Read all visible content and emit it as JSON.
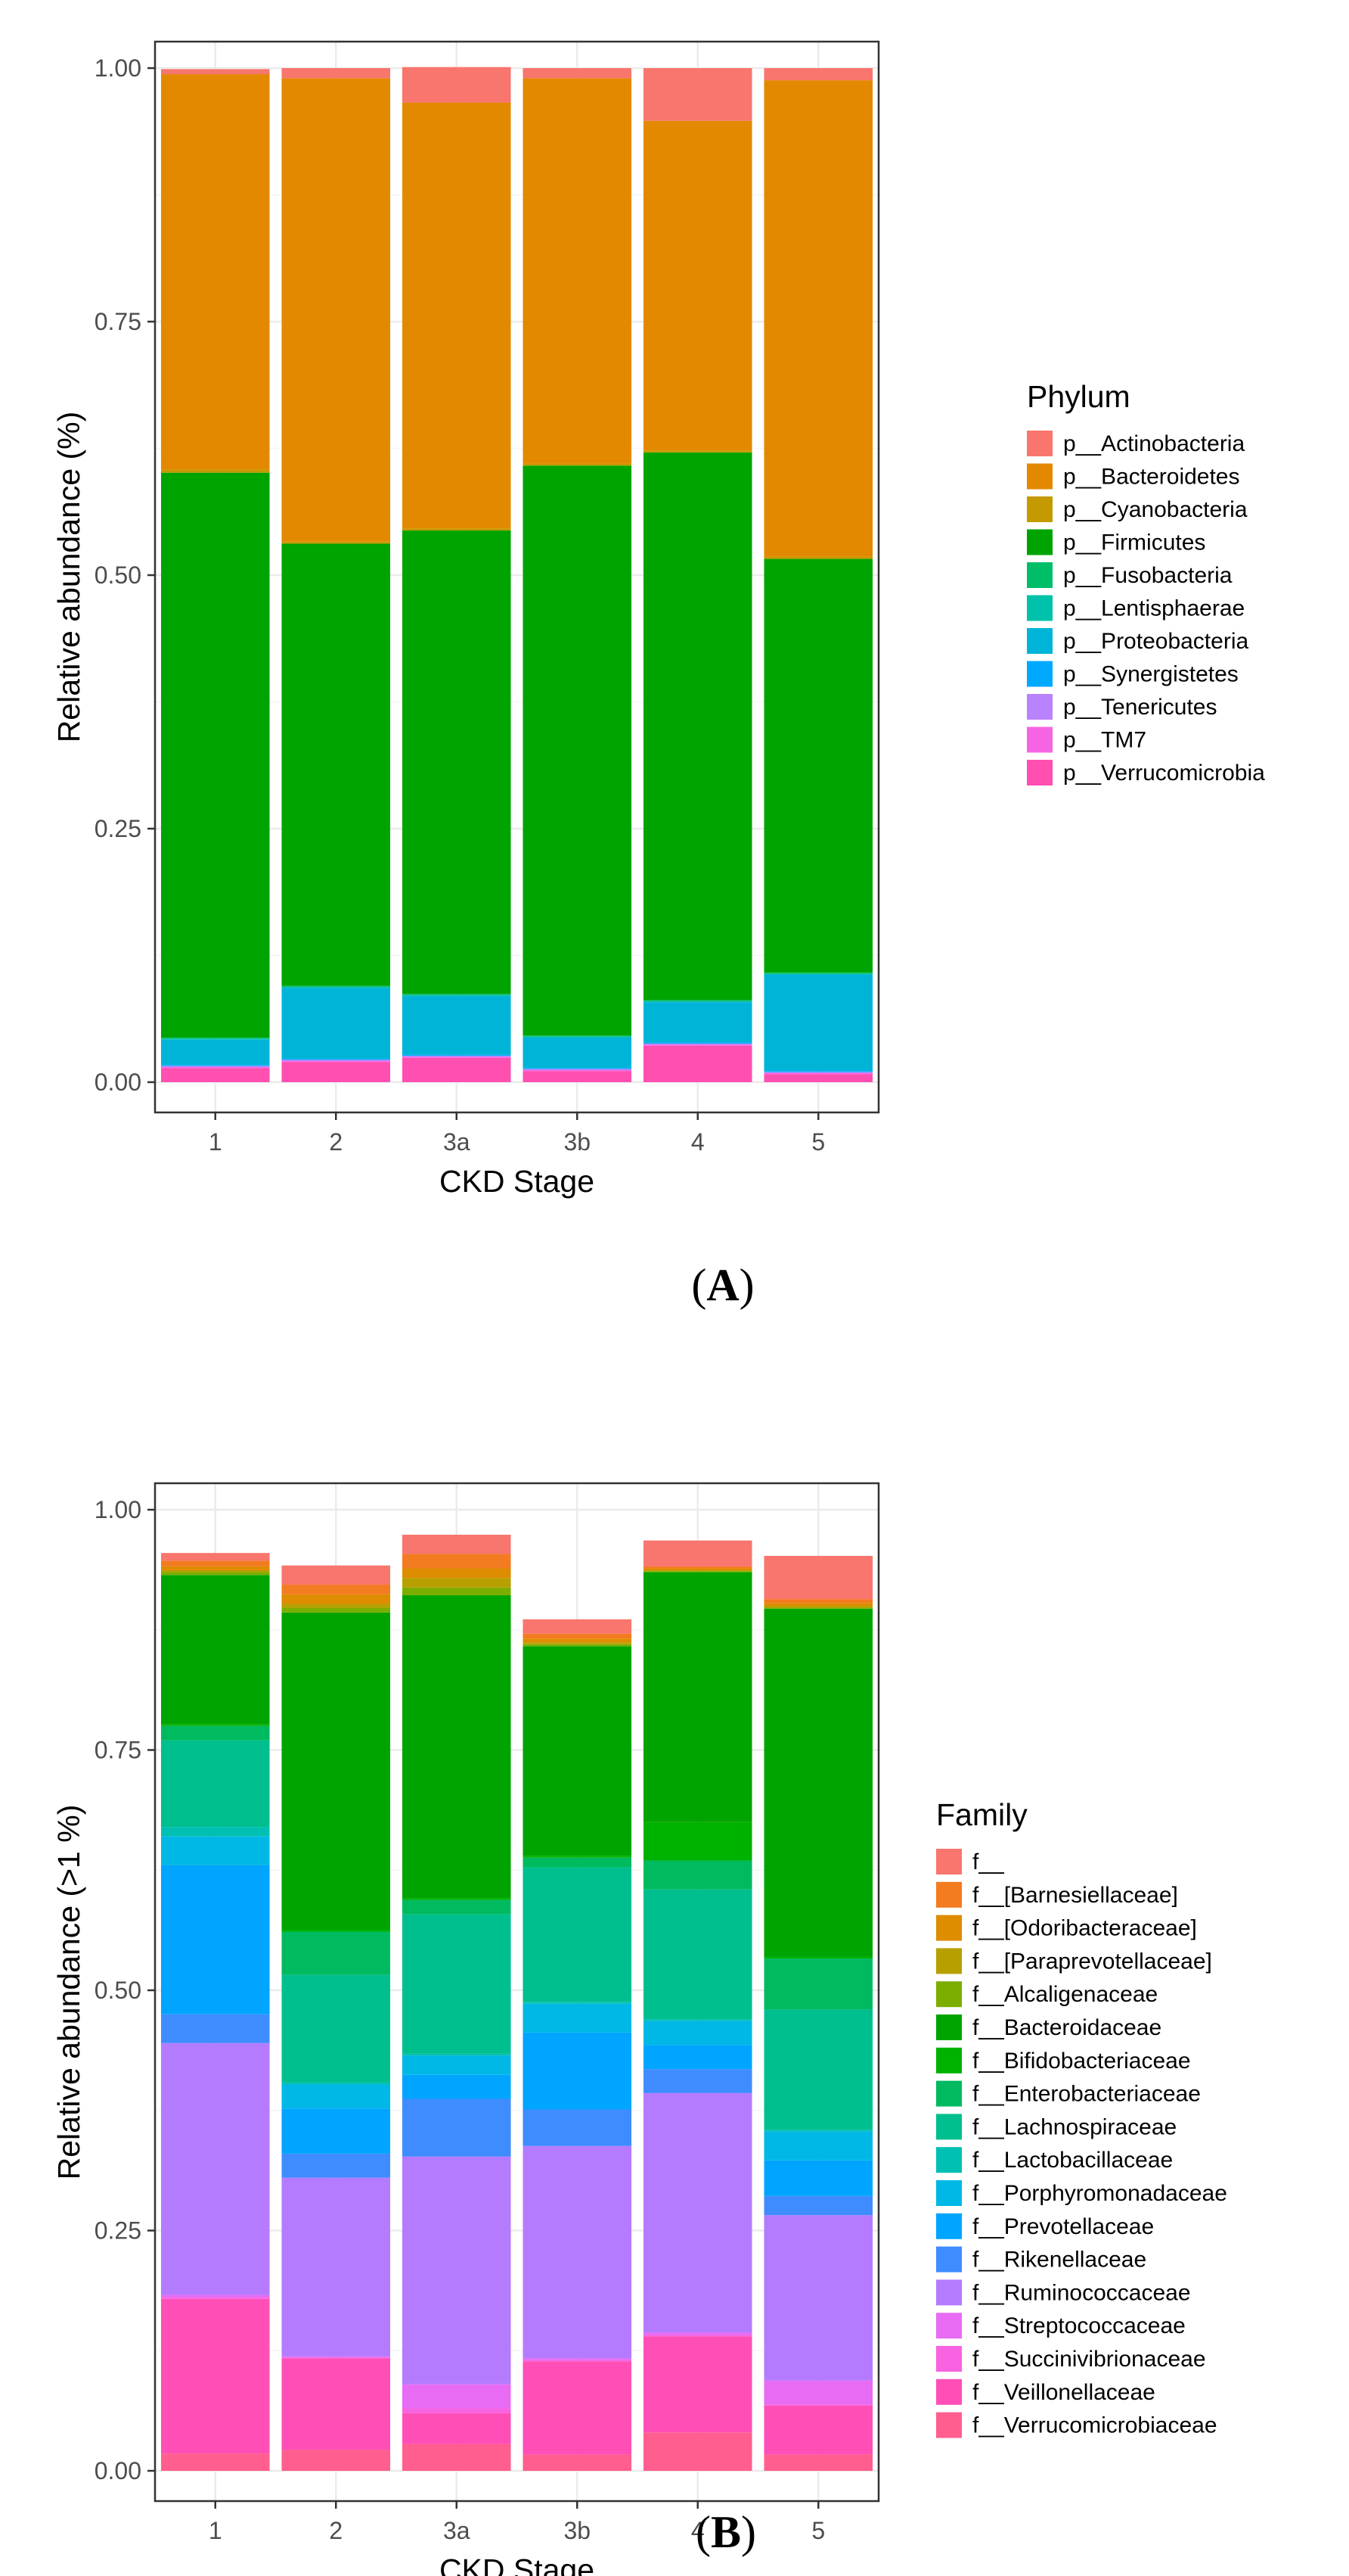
{
  "chart_data": [
    {
      "type": "bar",
      "stacked": true,
      "panel_label": "A",
      "xlabel": "CKD Stage",
      "ylabel": "Relative abundance (%)",
      "ylim": [
        0,
        1
      ],
      "yticks": [
        "0.00",
        "0.25",
        "0.50",
        "0.75",
        "1.00"
      ],
      "categories": [
        "1",
        "2",
        "3a",
        "3b",
        "4",
        "5"
      ],
      "grid": true,
      "legend_position": "right",
      "legend_title": "Phylum",
      "series": [
        {
          "name": "p__Actinobacteria",
          "color": "#F8766D",
          "values": [
            0.005,
            0.01,
            0.035,
            0.01,
            0.052,
            0.012
          ]
        },
        {
          "name": "p__Bacteroidetes",
          "color": "#E38900",
          "values": [
            0.39,
            0.457,
            0.42,
            0.38,
            0.325,
            0.47
          ]
        },
        {
          "name": "p__Cyanobacteria",
          "color": "#C49A00",
          "values": [
            0.003,
            0.002,
            0.002,
            0.002,
            0.002,
            0.002
          ]
        },
        {
          "name": "p__Firmicutes",
          "color": "#00A400",
          "values": [
            0.557,
            0.436,
            0.457,
            0.562,
            0.54,
            0.408
          ]
        },
        {
          "name": "p__Fusobacteria",
          "color": "#00BE67",
          "values": [
            0.001,
            0.001,
            0.001,
            0.001,
            0.001,
            0.001
          ]
        },
        {
          "name": "p__Lentisphaerae",
          "color": "#00C1A9",
          "values": [
            0.001,
            0.001,
            0.001,
            0.001,
            0.001,
            0.001
          ]
        },
        {
          "name": "p__Proteobacteria",
          "color": "#00B4D8",
          "values": [
            0.025,
            0.07,
            0.058,
            0.03,
            0.04,
            0.095
          ]
        },
        {
          "name": "p__Synergistetes",
          "color": "#00A9FF",
          "values": [
            0.001,
            0.001,
            0.001,
            0.001,
            0.001,
            0.001
          ]
        },
        {
          "name": "p__Tenericutes",
          "color": "#B983FF",
          "values": [
            0.001,
            0.001,
            0.001,
            0.001,
            0.001,
            0.001
          ]
        },
        {
          "name": "p__TM7",
          "color": "#F564E3",
          "values": [
            0.001,
            0.001,
            0.001,
            0.001,
            0.001,
            0.001
          ]
        },
        {
          "name": "p__Verrucomicrobia",
          "color": "#FF4FB0",
          "values": [
            0.014,
            0.02,
            0.024,
            0.011,
            0.036,
            0.008
          ]
        }
      ]
    },
    {
      "type": "bar",
      "stacked": true,
      "panel_label": "B",
      "xlabel": "CKD Stage",
      "ylabel": "Relative abundance (>1 %)",
      "ylim": [
        0,
        1
      ],
      "yticks": [
        "0.00",
        "0.25",
        "0.50",
        "0.75",
        "1.00"
      ],
      "categories": [
        "1",
        "2",
        "3a",
        "3b",
        "4",
        "5"
      ],
      "grid": true,
      "legend_position": "right",
      "legend_title": "Family",
      "series": [
        {
          "name": "f__",
          "color": "#F8766D",
          "values": [
            0.008,
            0.02,
            0.02,
            0.015,
            0.027,
            0.045
          ]
        },
        {
          "name": "f__[Barnesiellaceae]",
          "color": "#F37B20",
          "values": [
            0.006,
            0.01,
            0.015,
            0.005,
            0.002,
            0.004
          ]
        },
        {
          "name": "f__[Odoribacteraceae]",
          "color": "#DE8C00",
          "values": [
            0.004,
            0.01,
            0.01,
            0.004,
            0.002,
            0.003
          ]
        },
        {
          "name": "f__[Paraprevotellaceae]",
          "color": "#B79F00",
          "values": [
            0.002,
            0.004,
            0.01,
            0.002,
            0.001,
            0.002
          ]
        },
        {
          "name": "f__Alcaligenaceae",
          "color": "#7CAE00",
          "values": [
            0.003,
            0.005,
            0.008,
            0.002,
            0.001,
            0.001
          ]
        },
        {
          "name": "f__Bacteroidaceae",
          "color": "#00A400",
          "values": [
            0.155,
            0.33,
            0.315,
            0.218,
            0.26,
            0.362
          ]
        },
        {
          "name": "f__Bifidobacteriaceae",
          "color": "#00B200",
          "values": [
            0.002,
            0.002,
            0.002,
            0.002,
            0.04,
            0.002
          ]
        },
        {
          "name": "f__Enterobacteriaceae",
          "color": "#00BA60",
          "values": [
            0.015,
            0.045,
            0.015,
            0.01,
            0.03,
            0.053
          ]
        },
        {
          "name": "f__Lachnospiraceae",
          "color": "#00BF8E",
          "values": [
            0.09,
            0.112,
            0.145,
            0.14,
            0.135,
            0.125
          ]
        },
        {
          "name": "f__Lactobacillaceae",
          "color": "#00C0B4",
          "values": [
            0.01,
            0.002,
            0.002,
            0.002,
            0.002,
            0.002
          ]
        },
        {
          "name": "f__Porphyromonadaceae",
          "color": "#00B8E5",
          "values": [
            0.03,
            0.025,
            0.02,
            0.03,
            0.025,
            0.03
          ]
        },
        {
          "name": "f__Prevotellaceae",
          "color": "#00A5FF",
          "values": [
            0.155,
            0.047,
            0.025,
            0.08,
            0.025,
            0.037
          ]
        },
        {
          "name": "f__Rikenellaceae",
          "color": "#3F8CFF",
          "values": [
            0.03,
            0.025,
            0.06,
            0.038,
            0.025,
            0.02
          ]
        },
        {
          "name": "f__Ruminococcaceae",
          "color": "#B57BFF",
          "values": [
            0.262,
            0.186,
            0.237,
            0.221,
            0.249,
            0.172
          ]
        },
        {
          "name": "f__Streptococcaceae",
          "color": "#E76BF3",
          "values": [
            0.003,
            0.001,
            0.025,
            0.002,
            0.003,
            0.025
          ]
        },
        {
          "name": "f__Succinivibrionaceae",
          "color": "#F763E0",
          "values": [
            0.001,
            0.001,
            0.005,
            0.001,
            0.001,
            0.001
          ]
        },
        {
          "name": "f__Veillonellaceae",
          "color": "#FF4FB7",
          "values": [
            0.161,
            0.095,
            0.032,
            0.097,
            0.1,
            0.051
          ]
        },
        {
          "name": "f__Verrucomicrobiaceae",
          "color": "#FF5E8E",
          "values": [
            0.018,
            0.022,
            0.028,
            0.017,
            0.04,
            0.017
          ]
        }
      ]
    }
  ]
}
